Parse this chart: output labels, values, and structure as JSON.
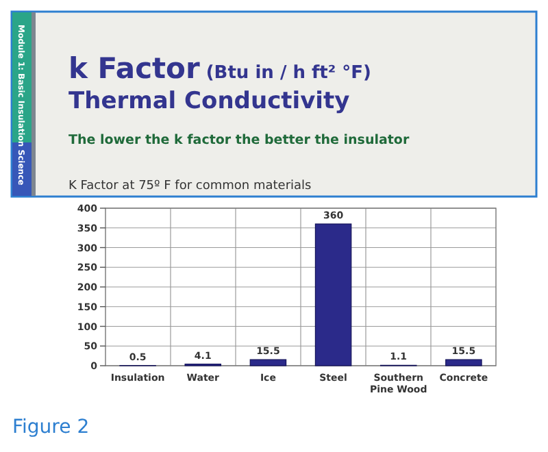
{
  "chart_data": {
    "type": "bar",
    "title": "k Factor (Btu in / h ft² °F)",
    "subtitle": "Thermal Conductivity",
    "annotations": [
      "The lower the k factor the better the insulator",
      "K Factor at 75º F for common materials",
      "Module 1: Basic Insulation Science",
      "Figure 2"
    ],
    "categories": [
      "Insulation",
      "Water",
      "Ice",
      "Steel",
      "Southern Pine Wood",
      "Concrete"
    ],
    "values": [
      0.5,
      4.1,
      15.5,
      360,
      1.1,
      15.5
    ],
    "color": "#2b2a8a",
    "ylim": [
      0,
      400
    ],
    "yticks": [
      0,
      50,
      100,
      150,
      200,
      250,
      300,
      350,
      400
    ],
    "grid": true,
    "data_labels": true
  }
}
